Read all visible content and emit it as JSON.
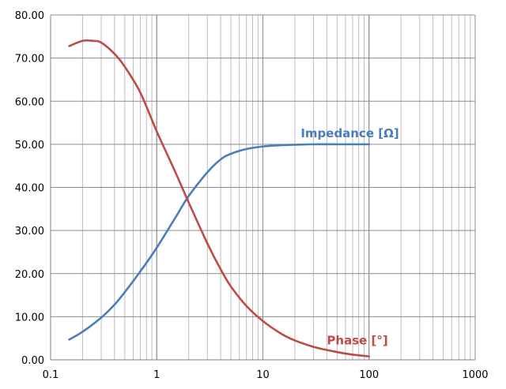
{
  "chart_data": {
    "type": "line",
    "x_scale": "log",
    "xlim": [
      0.1,
      1000
    ],
    "ylim": [
      0,
      80
    ],
    "grid": true,
    "x_ticks": [
      "0.1",
      "1",
      "10",
      "100",
      "1000"
    ],
    "y_ticks": [
      "0.00",
      "10.00",
      "20.00",
      "30.00",
      "40.00",
      "50.00",
      "60.00",
      "70.00",
      "80.00"
    ],
    "series": [
      {
        "name": "Impedance [Ω]",
        "color": "#4a7ebb",
        "x": [
          0.15,
          0.2,
          0.3,
          0.4,
          0.5,
          0.7,
          1,
          1.5,
          2,
          3,
          4,
          5,
          7,
          10,
          15,
          20,
          30,
          50,
          70,
          100
        ],
        "y": [
          4.7,
          6.5,
          9.8,
          12.8,
          15.7,
          20.5,
          26.0,
          33.0,
          38.0,
          43.5,
          46.5,
          47.8,
          48.9,
          49.5,
          49.8,
          49.9,
          50.0,
          50.0,
          50.0,
          50.0
        ]
      },
      {
        "name": "Phase [°]",
        "color": "#be4b48",
        "x": [
          0.15,
          0.2,
          0.25,
          0.3,
          0.4,
          0.5,
          0.7,
          1,
          1.5,
          2,
          3,
          4,
          5,
          7,
          10,
          15,
          20,
          30,
          50,
          70,
          100
        ],
        "y": [
          72.8,
          74.0,
          74.0,
          73.6,
          71.0,
          68.0,
          62.0,
          53.0,
          43.5,
          36.5,
          27.0,
          21.0,
          17.0,
          12.5,
          9.0,
          6.0,
          4.5,
          3.0,
          1.8,
          1.2,
          0.8
        ]
      }
    ]
  }
}
